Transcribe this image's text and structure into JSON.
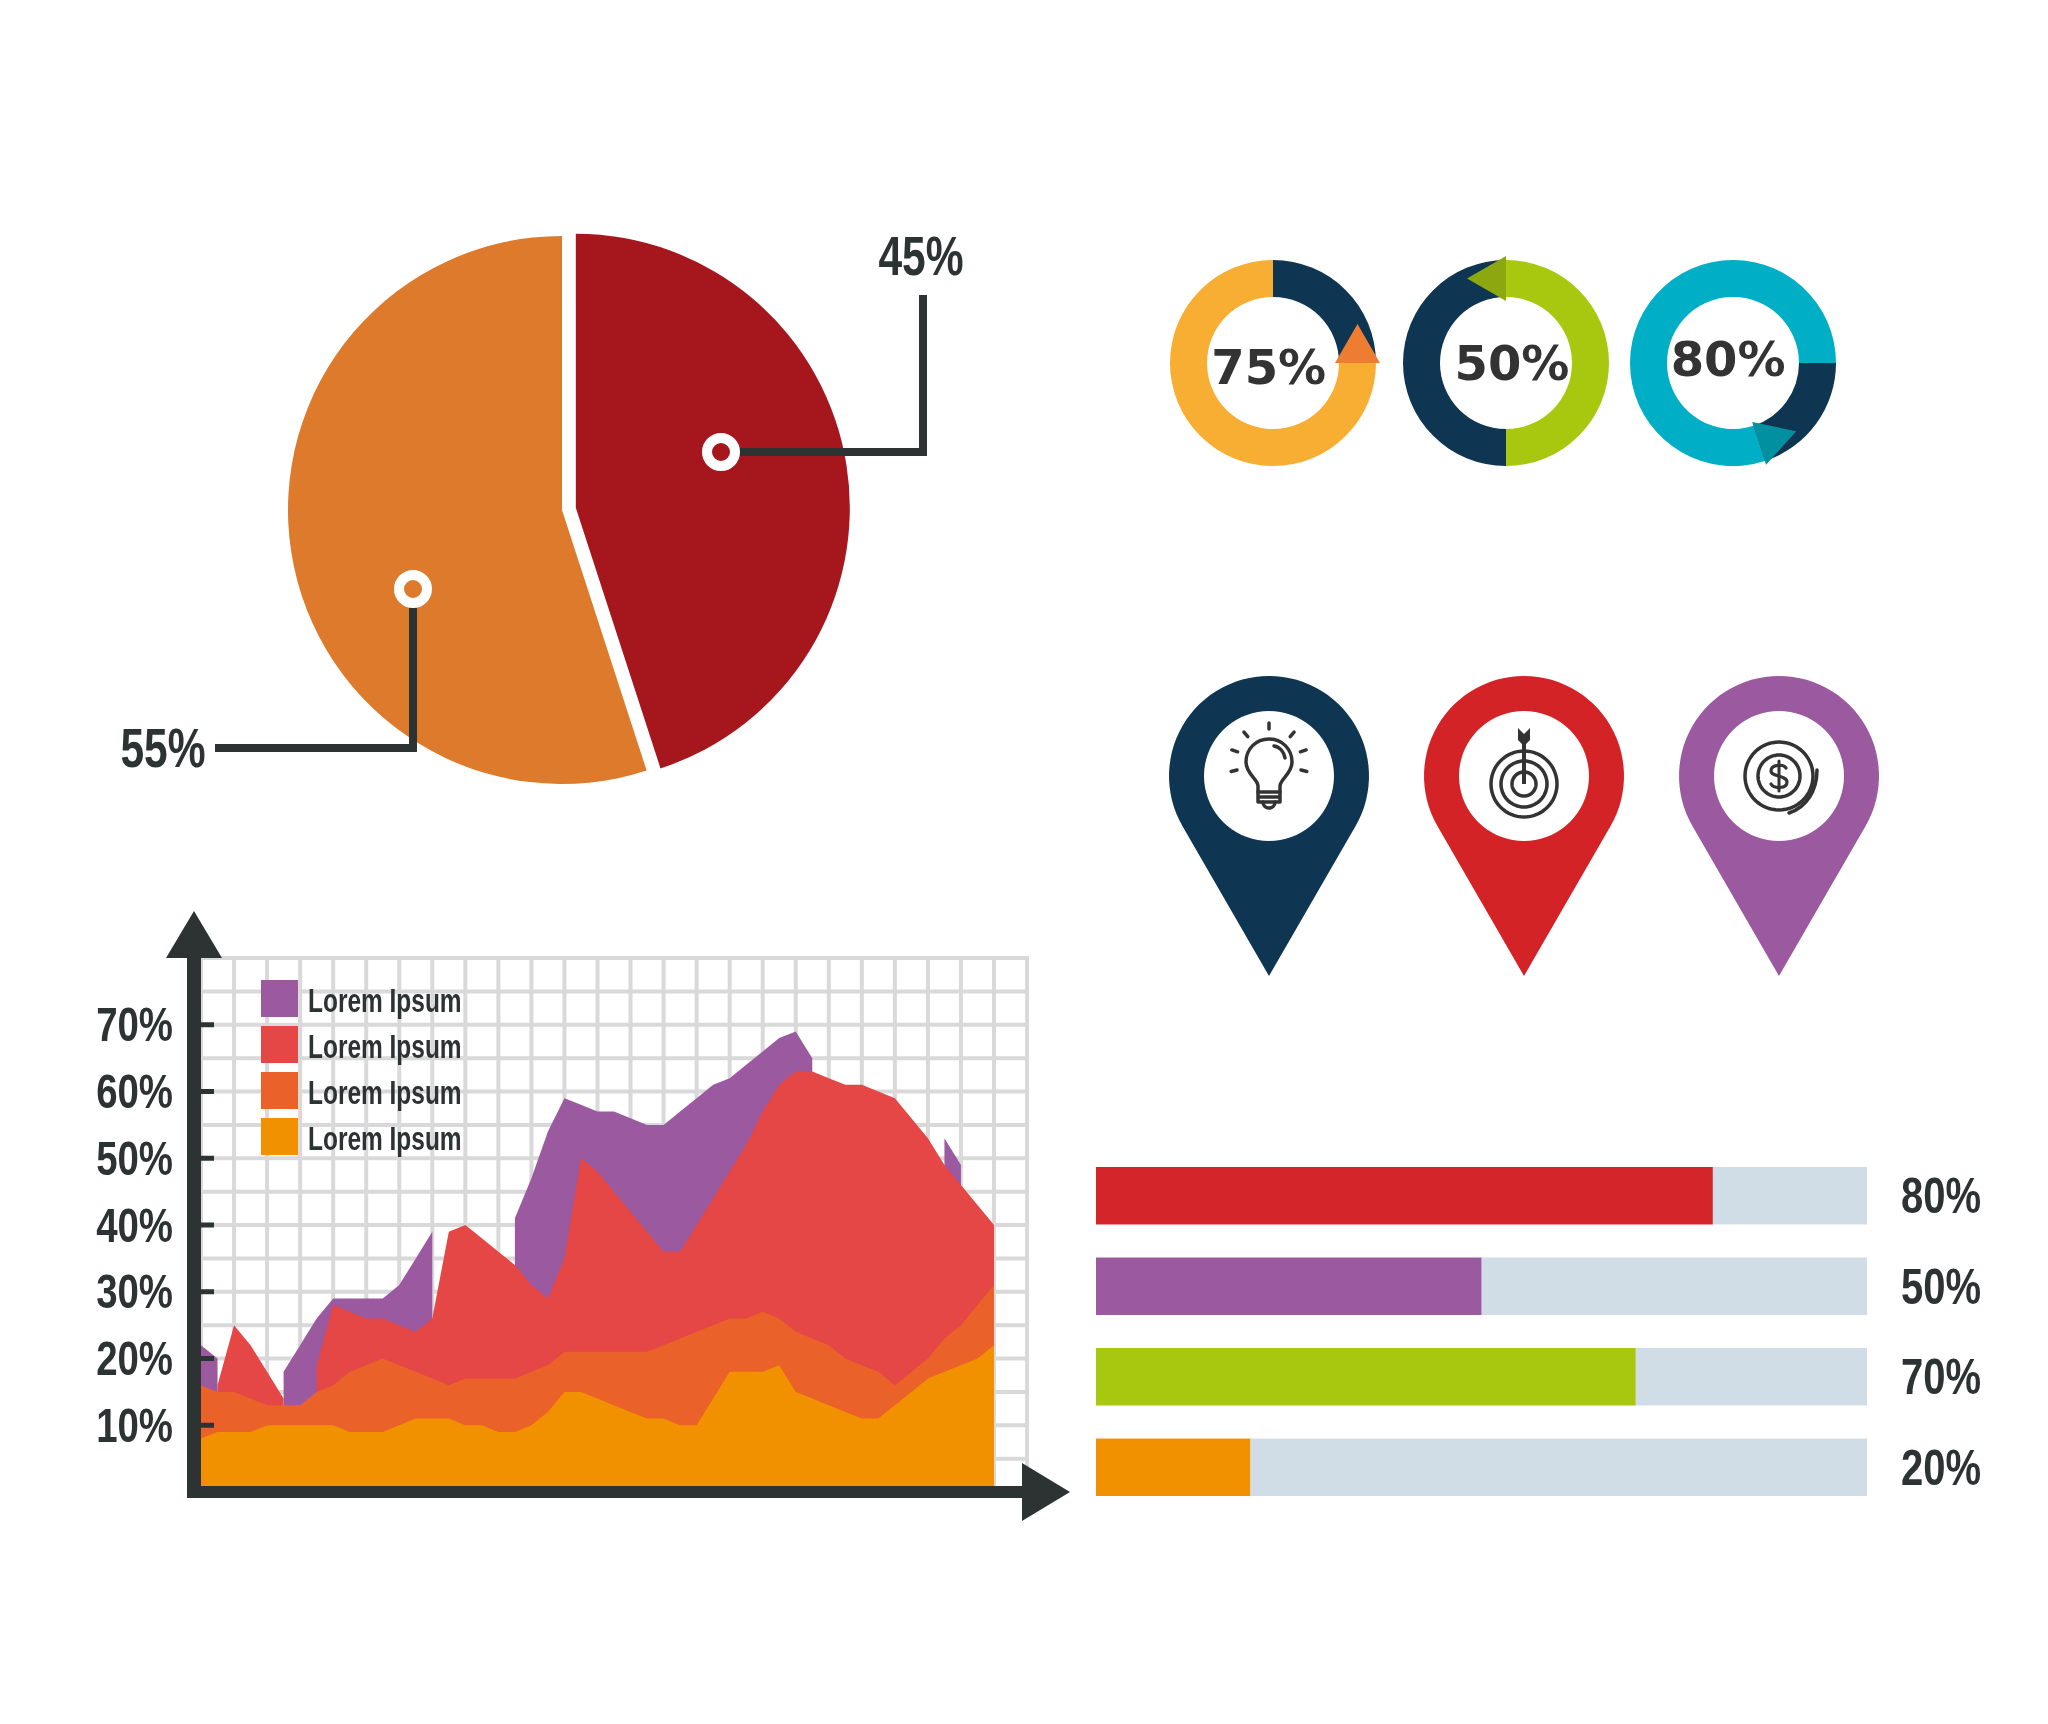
{
  "chart_data": [
    {
      "type": "pie",
      "categories": [
        null,
        null
      ],
      "values": [
        45,
        55
      ],
      "colors": [
        "#a5161d",
        "#dd7a2c"
      ],
      "value_labels": [
        "45%",
        "55%"
      ]
    },
    {
      "type": "donut",
      "categories": [
        null,
        null
      ],
      "values": [
        75,
        25
      ],
      "colors": [
        "#f7ae33",
        "#0e3552"
      ],
      "value_labels": [
        "75%",
        null
      ]
    },
    {
      "type": "donut",
      "categories": [
        null,
        null
      ],
      "values": [
        50,
        50
      ],
      "colors": [
        "#a8c70f",
        "#0e3552"
      ],
      "value_labels": [
        "50%",
        null
      ]
    },
    {
      "type": "donut",
      "categories": [
        null,
        null
      ],
      "values": [
        80,
        20
      ],
      "colors": [
        "#00aec6",
        "#0e3552"
      ],
      "value_labels": [
        "80%",
        null
      ]
    },
    {
      "type": "area",
      "categories": [
        null,
        null,
        null,
        null,
        null,
        null,
        null,
        null,
        null,
        null,
        null,
        null,
        null,
        null,
        null,
        null,
        null,
        null,
        null,
        null,
        null,
        null,
        null,
        null,
        null,
        null,
        null,
        null,
        null,
        null,
        null,
        null,
        null,
        null,
        null,
        null,
        null,
        null,
        null,
        null,
        null,
        null,
        null,
        null,
        null,
        null,
        null,
        null,
        null
      ],
      "series": [
        {
          "name": "Lorem Ipsum",
          "color": "#9b59a0",
          "values": [
            22,
            20,
            null,
            null,
            null,
            18,
            22,
            26,
            29,
            29,
            29,
            29,
            31,
            35,
            39,
            null,
            null,
            null,
            null,
            41,
            47,
            54,
            59,
            58,
            57,
            57,
            56,
            55,
            55,
            57,
            59,
            61,
            62,
            64,
            66,
            68,
            69,
            65,
            null,
            null,
            null,
            null,
            null,
            null,
            null,
            53,
            49,
            null,
            null
          ]
        },
        {
          "name": "Lorem Ipsum",
          "color": "#e54646",
          "values": [
            null,
            16,
            25,
            22,
            18,
            14,
            null,
            19,
            28,
            27,
            26,
            26,
            25,
            24,
            26,
            39,
            40,
            38,
            36,
            34,
            31,
            29,
            35,
            50,
            48,
            45,
            42,
            39,
            36,
            36,
            40,
            44,
            48,
            52,
            57,
            61,
            63,
            63,
            62,
            61,
            61,
            60,
            59,
            56,
            53,
            49,
            46,
            43,
            40
          ]
        },
        {
          "name": "Lorem Ipsum",
          "color": "#ea6129",
          "values": [
            16,
            15,
            15,
            14,
            13,
            13,
            13,
            15,
            16,
            18,
            19,
            20,
            19,
            18,
            17,
            16,
            17,
            17,
            17,
            17,
            18,
            19,
            21,
            21,
            21,
            21,
            21,
            21,
            22,
            23,
            24,
            25,
            26,
            26,
            27,
            26,
            24,
            23,
            22,
            20,
            19,
            18,
            16,
            18,
            20,
            23,
            25,
            28,
            31
          ]
        },
        {
          "name": "Lorem Ipsum",
          "color": "#f19100",
          "values": [
            8,
            9,
            9,
            9,
            10,
            10,
            10,
            10,
            10,
            9,
            9,
            9,
            10,
            11,
            11,
            11,
            10,
            10,
            9,
            9,
            10,
            12,
            15,
            15,
            14,
            13,
            12,
            11,
            11,
            10,
            10,
            14,
            18,
            18,
            18,
            19,
            15,
            14,
            13,
            12,
            11,
            11,
            13,
            15,
            17,
            18,
            19,
            20,
            22
          ]
        }
      ],
      "ylim": [
        0,
        80
      ],
      "yticks": [
        {
          "value": 10,
          "label": "10%"
        },
        {
          "value": 20,
          "label": "20%"
        },
        {
          "value": 30,
          "label": "30%"
        },
        {
          "value": 40,
          "label": "40%"
        },
        {
          "value": 50,
          "label": "50%"
        },
        {
          "value": 60,
          "label": "60%"
        },
        {
          "value": 70,
          "label": "70%"
        }
      ],
      "grid": true,
      "legend": "top left",
      "tick_labels": "y"
    },
    {
      "type": "bar",
      "orientation": "horizontal",
      "categories": [
        null,
        null,
        null,
        null
      ],
      "values": [
        80,
        50,
        70,
        20
      ],
      "colors": [
        "#d4262a",
        "#9b59a0",
        "#a8c70f",
        "#f19100"
      ],
      "xlim": [
        0,
        100
      ],
      "value_labels": [
        "80%",
        "50%",
        "70%",
        "20%"
      ],
      "tick_labels": false
    }
  ]
}
